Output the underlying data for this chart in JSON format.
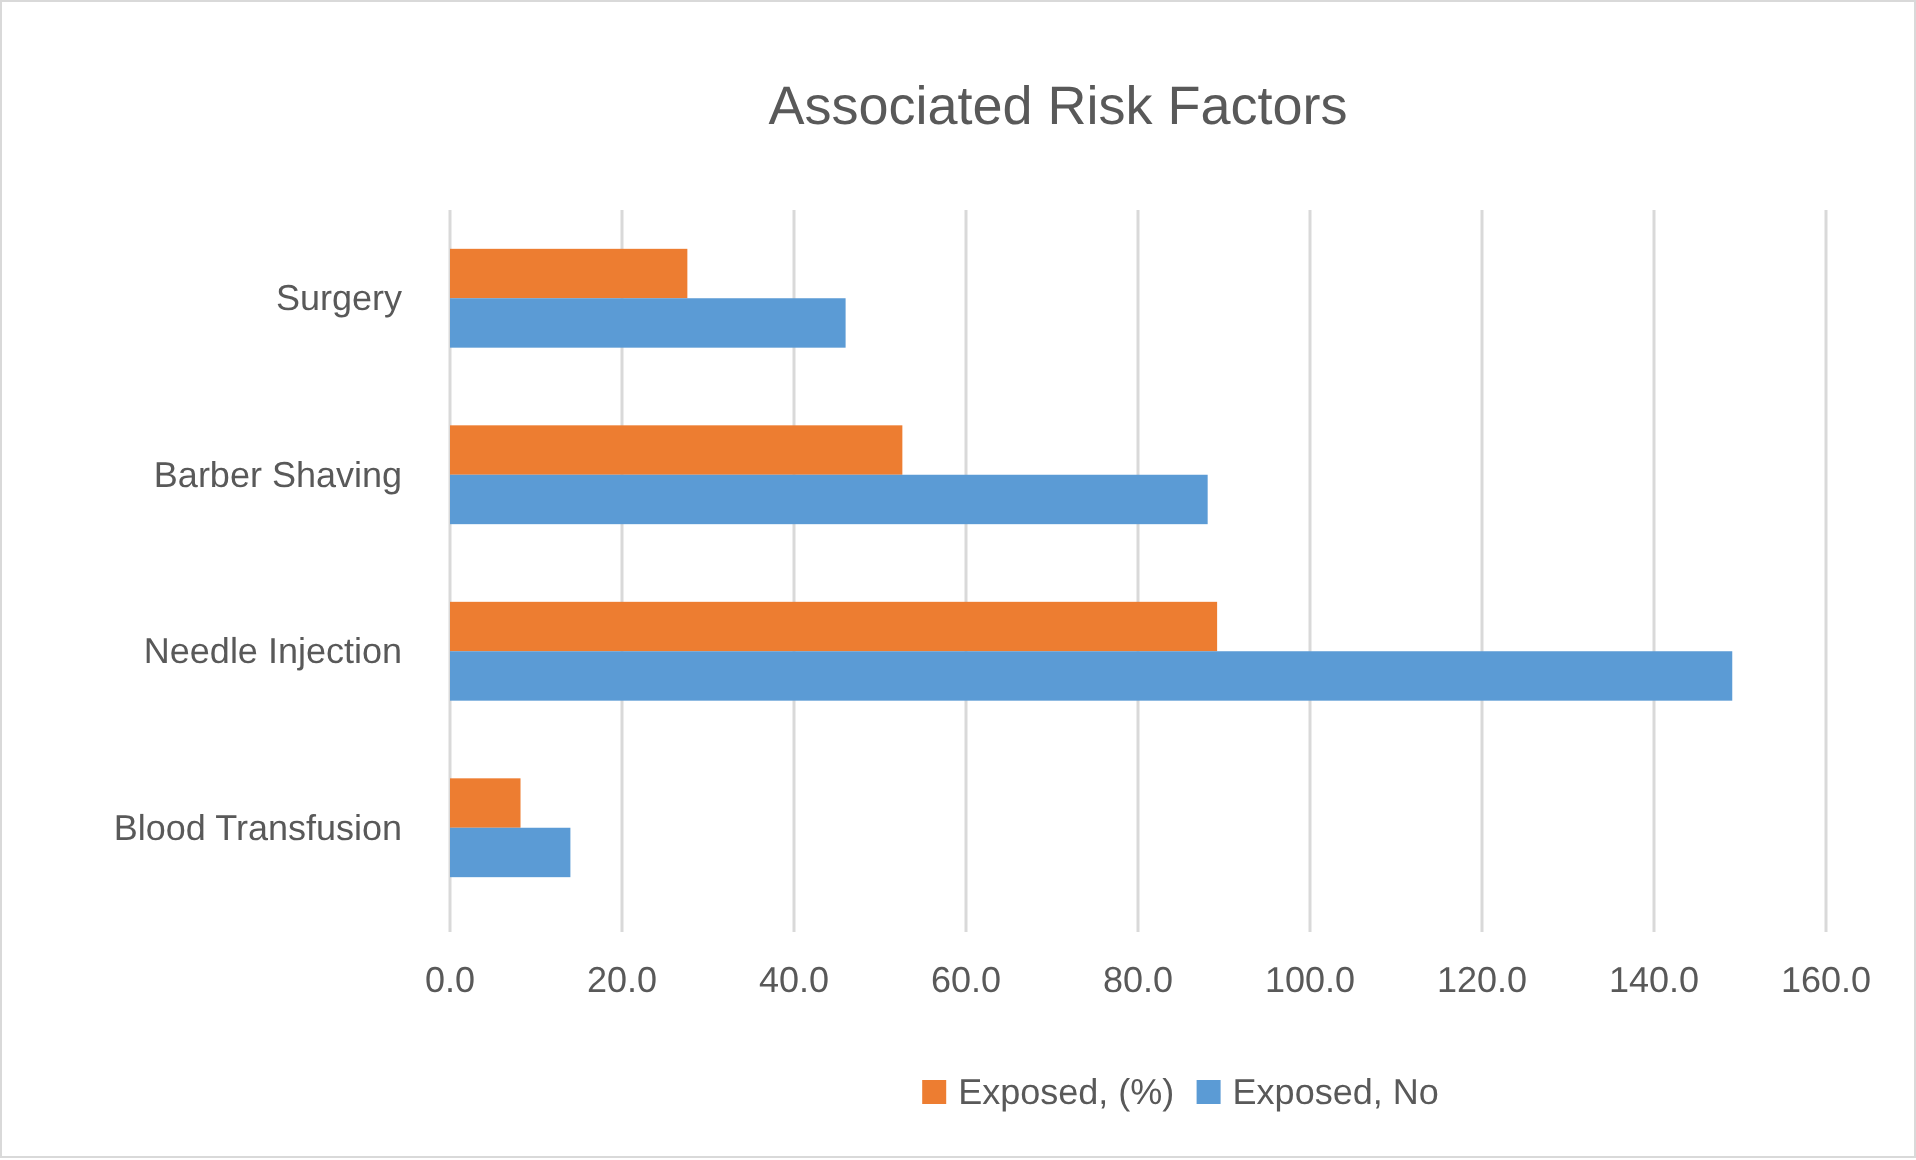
{
  "chart_data": {
    "type": "bar",
    "orientation": "horizontal",
    "title": "Associated Risk Factors",
    "categories": [
      "Surgery",
      "Barber Shaving",
      "Needle Injection",
      "Blood Transfusion"
    ],
    "series": [
      {
        "name": "Exposed, (%)",
        "color": "#ed7d31",
        "values": [
          27.6,
          52.6,
          89.2,
          8.2
        ]
      },
      {
        "name": "Exposed, No",
        "color": "#5b9bd5",
        "values": [
          46.0,
          88.1,
          149.1,
          14.0
        ]
      }
    ],
    "xlim": [
      0,
      160
    ],
    "xticks": [
      {
        "value": 0,
        "label": "0.0"
      },
      {
        "value": 20,
        "label": "20.0"
      },
      {
        "value": 40,
        "label": "40.0"
      },
      {
        "value": 60,
        "label": "60.0"
      },
      {
        "value": 80,
        "label": "80.0"
      },
      {
        "value": 100,
        "label": "100.0"
      },
      {
        "value": 120,
        "label": "120.0"
      },
      {
        "value": 140,
        "label": "140.0"
      },
      {
        "value": 160,
        "label": "160.0"
      }
    ],
    "grid": "x",
    "legend": "bottom"
  }
}
